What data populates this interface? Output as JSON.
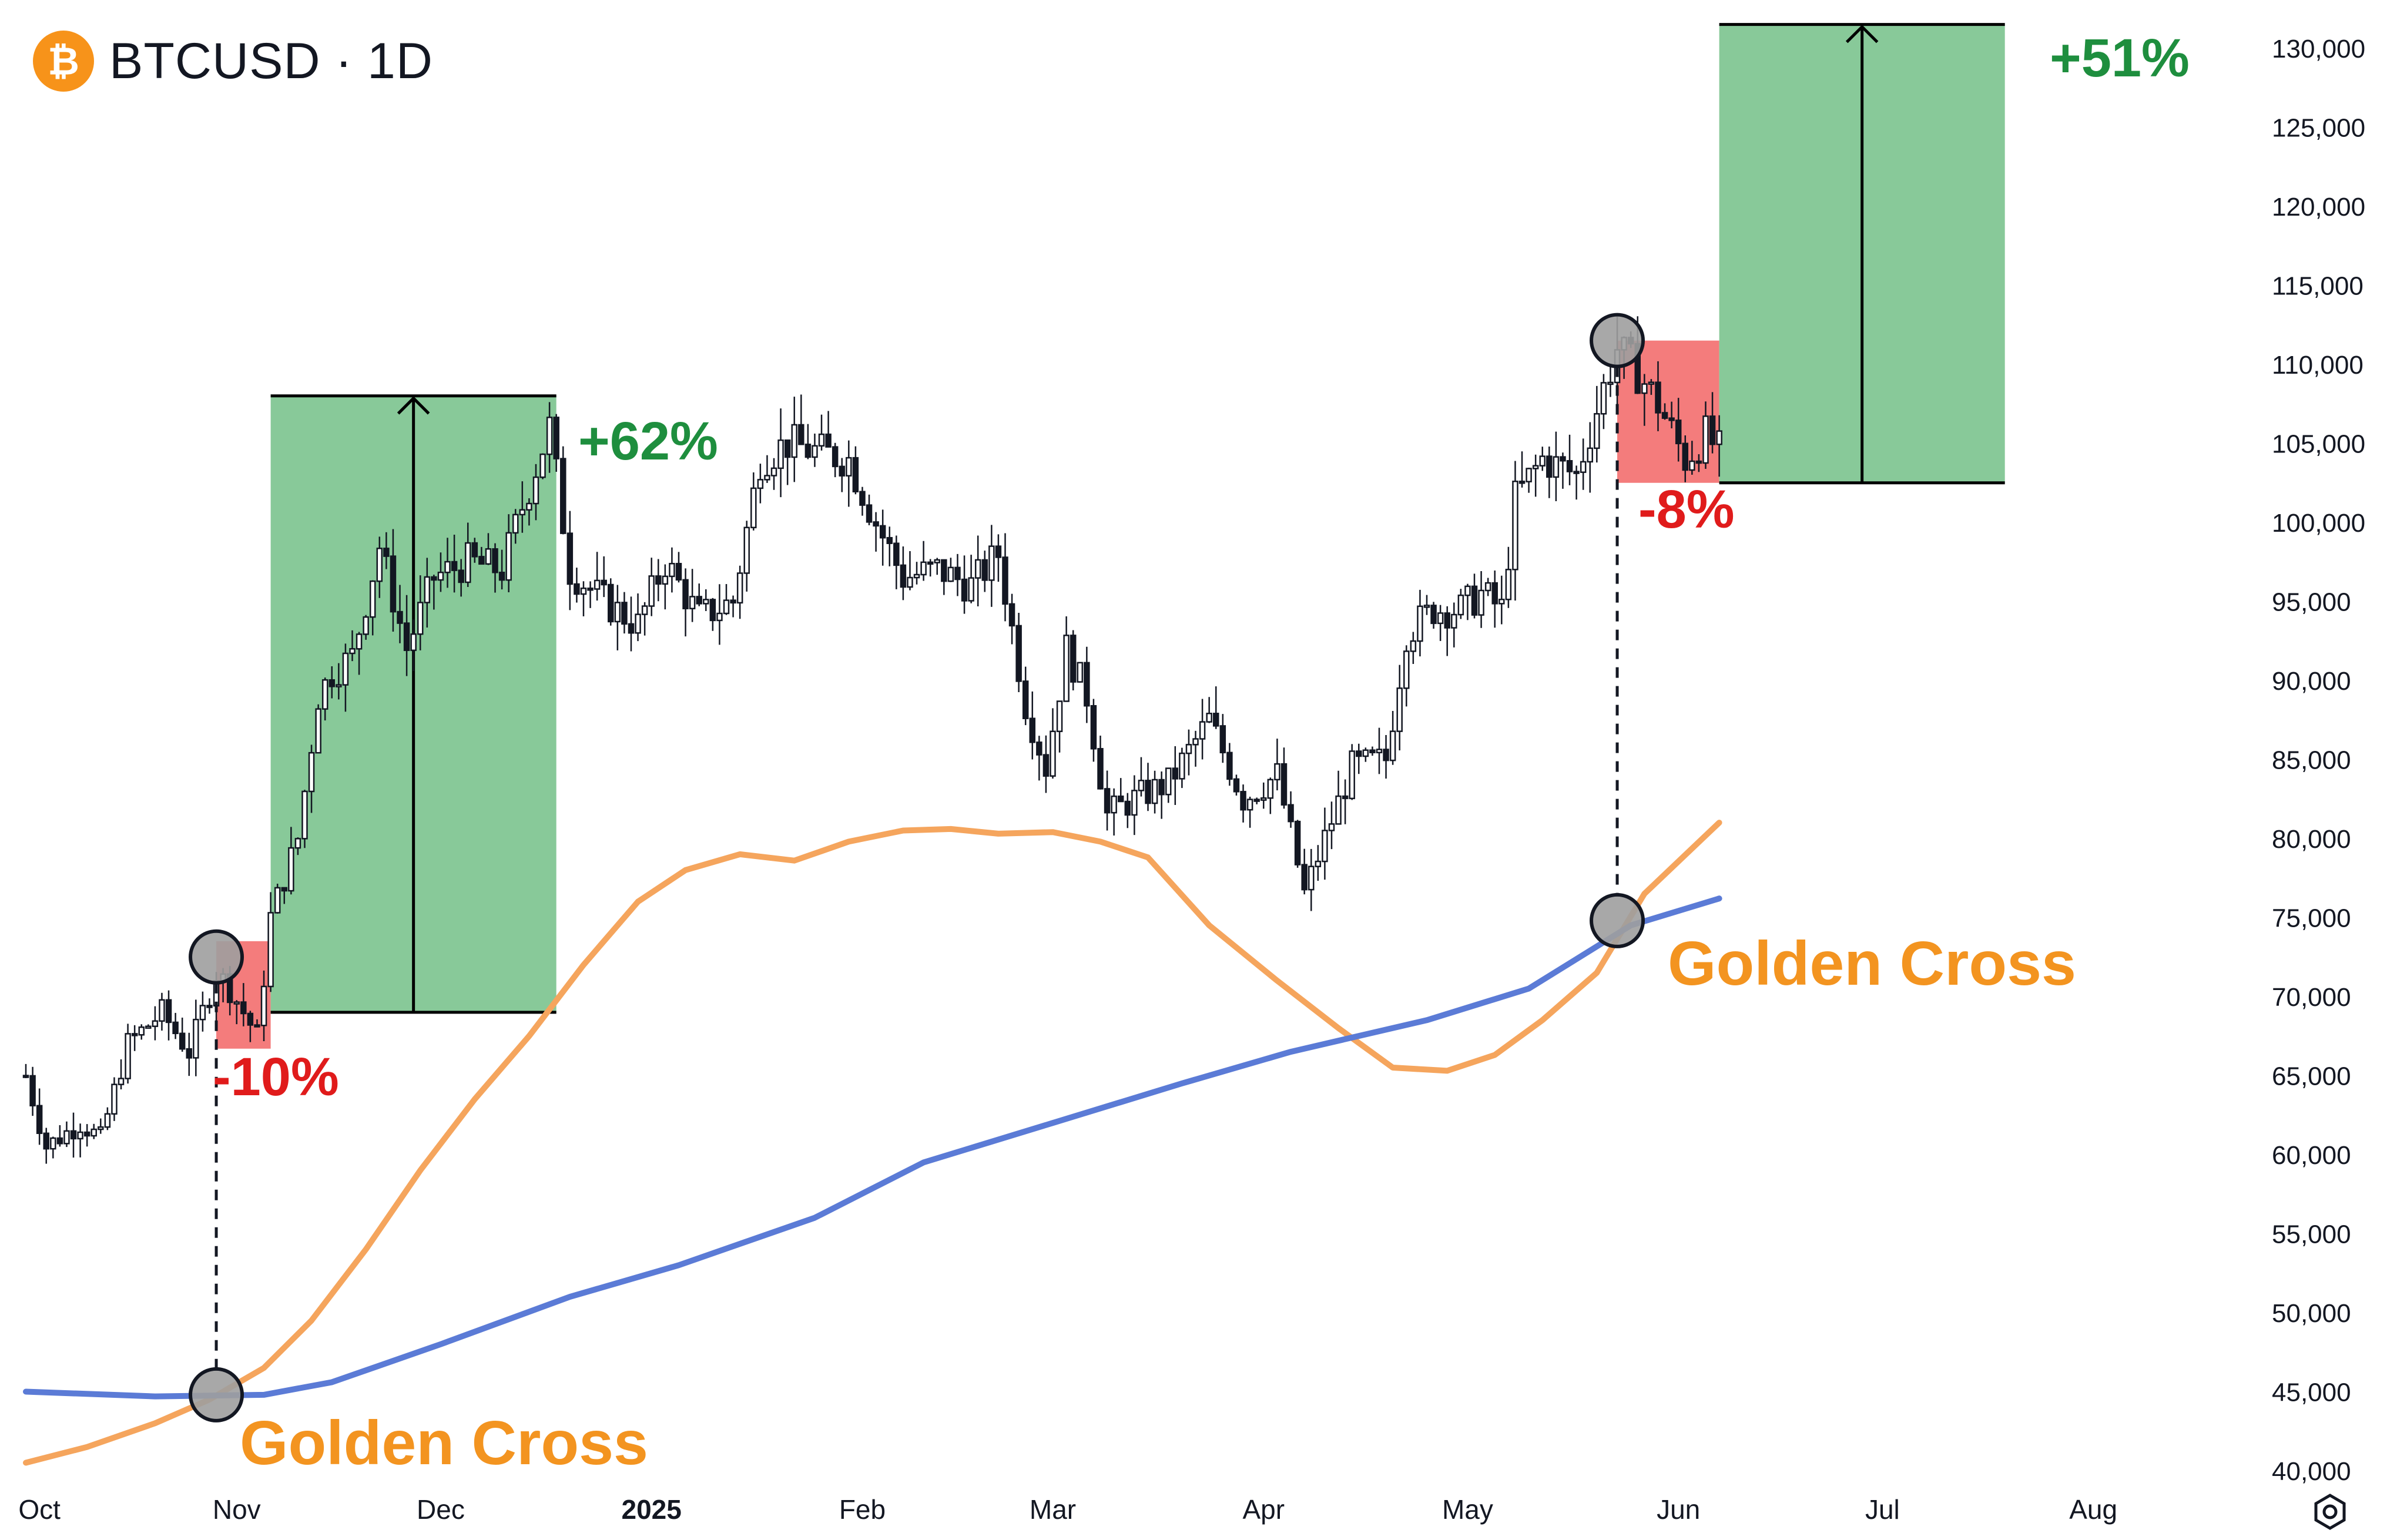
{
  "header": {
    "symbol": "BTCUSD · 1D",
    "logo_glyph": "₿",
    "logo_color": "#F7931A"
  },
  "colors": {
    "sma50": "#F5A55D",
    "sma200": "#5B7BD6",
    "gain": "#88C999",
    "loss": "#F47C7C",
    "gain_text": "#1E8E3E",
    "loss_text": "#E01B1B",
    "cross_text": "#F39420"
  },
  "chart_data": {
    "type": "candlestick",
    "title": "BTCUSD · 1D",
    "ylim": [
      40000,
      132000
    ],
    "y_ticks": [
      "130,000",
      "125,000",
      "120,000",
      "115,000",
      "110,000",
      "105,000",
      "100,000",
      "95,000",
      "90,000",
      "85,000",
      "80,000",
      "75,000",
      "70,000",
      "65,000",
      "60,000",
      "55,000",
      "50,000",
      "45,000",
      "40,000"
    ],
    "x_ticks": [
      "Oct",
      "Nov",
      "Dec",
      "2025",
      "Feb",
      "Mar",
      "Apr",
      "May",
      "Jun",
      "Jul",
      "Aug"
    ],
    "x_range": [
      "2024-10-01",
      "2025-08-06"
    ],
    "price_path": [
      [
        "2024-10-01",
        65000
      ],
      [
        "2024-10-04",
        60500
      ],
      [
        "2024-10-09",
        62000
      ],
      [
        "2024-10-12",
        61000
      ],
      [
        "2024-10-16",
        67000
      ],
      [
        "2024-10-21",
        69000
      ],
      [
        "2024-10-25",
        66500
      ],
      [
        "2024-10-29",
        71500
      ],
      [
        "2024-10-31",
        70500
      ],
      [
        "2024-11-04",
        67500
      ],
      [
        "2024-11-06",
        75000
      ],
      [
        "2024-11-10",
        80000
      ],
      [
        "2024-11-13",
        89000
      ],
      [
        "2024-11-15",
        90500
      ],
      [
        "2024-11-18",
        91500
      ],
      [
        "2024-11-22",
        98500
      ],
      [
        "2024-11-26",
        92000
      ],
      [
        "2024-11-30",
        96500
      ],
      [
        "2024-12-05",
        97500
      ],
      [
        "2024-12-10",
        97000
      ],
      [
        "2024-12-13",
        101000
      ],
      [
        "2024-12-17",
        106000
      ],
      [
        "2024-12-20",
        97000
      ],
      [
        "2024-12-25",
        95000
      ],
      [
        "2024-12-30",
        93500
      ],
      [
        "2025-01-03",
        97500
      ],
      [
        "2025-01-08",
        94000
      ],
      [
        "2025-01-13",
        95000
      ],
      [
        "2025-01-17",
        104000
      ],
      [
        "2025-01-21",
        105000
      ],
      [
        "2025-01-25",
        104500
      ],
      [
        "2025-01-30",
        104000
      ],
      [
        "2025-02-03",
        100000
      ],
      [
        "2025-02-07",
        96500
      ],
      [
        "2025-02-12",
        97000
      ],
      [
        "2025-02-17",
        96000
      ],
      [
        "2025-02-21",
        98000
      ],
      [
        "2025-02-25",
        88500
      ],
      [
        "2025-02-28",
        84500
      ],
      [
        "2025-03-03",
        92000
      ],
      [
        "2025-03-06",
        89000
      ],
      [
        "2025-03-09",
        81500
      ],
      [
        "2025-03-13",
        82500
      ],
      [
        "2025-03-18",
        83500
      ],
      [
        "2025-03-24",
        87500
      ],
      [
        "2025-03-29",
        82500
      ],
      [
        "2025-04-03",
        84000
      ],
      [
        "2025-04-07",
        76500
      ],
      [
        "2025-04-10",
        80000
      ],
      [
        "2025-04-14",
        84500
      ],
      [
        "2025-04-19",
        85000
      ],
      [
        "2025-04-22",
        93000
      ],
      [
        "2025-04-26",
        94500
      ],
      [
        "2025-04-30",
        94500
      ],
      [
        "2025-05-03",
        95500
      ],
      [
        "2025-05-06",
        94500
      ],
      [
        "2025-05-08",
        101500
      ],
      [
        "2025-05-12",
        104000
      ],
      [
        "2025-05-17",
        103000
      ],
      [
        "2025-05-21",
        108500
      ],
      [
        "2025-05-23",
        111000
      ],
      [
        "2025-05-26",
        109500
      ],
      [
        "2025-05-29",
        107500
      ],
      [
        "2025-06-02",
        104000
      ],
      [
        "2025-06-05",
        105500
      ],
      [
        "2025-06-07",
        104500
      ]
    ],
    "series": [
      {
        "name": "",
        "color": "#F5A55D",
        "points": [
          [
            "2024-10-01",
            40500
          ],
          [
            "2024-10-10",
            41500
          ],
          [
            "2024-10-20",
            43000
          ],
          [
            "2024-10-28",
            44500
          ],
          [
            "2024-11-05",
            46500
          ],
          [
            "2024-11-12",
            49500
          ],
          [
            "2024-11-20",
            54000
          ],
          [
            "2024-11-28",
            59000
          ],
          [
            "2024-12-06",
            63500
          ],
          [
            "2024-12-14",
            67500
          ],
          [
            "2024-12-22",
            72000
          ],
          [
            "2024-12-30",
            76000
          ],
          [
            "2025-01-06",
            78000
          ],
          [
            "2025-01-14",
            79000
          ],
          [
            "2025-01-22",
            78600
          ],
          [
            "2025-01-30",
            79800
          ],
          [
            "2025-02-07",
            80500
          ],
          [
            "2025-02-14",
            80600
          ],
          [
            "2025-02-21",
            80300
          ],
          [
            "2025-03-01",
            80400
          ],
          [
            "2025-03-08",
            79800
          ],
          [
            "2025-03-15",
            78800
          ],
          [
            "2025-03-24",
            74500
          ],
          [
            "2025-04-03",
            71000
          ],
          [
            "2025-04-12",
            68000
          ],
          [
            "2025-04-20",
            65500
          ],
          [
            "2025-04-28",
            65300
          ],
          [
            "2025-05-05",
            66300
          ],
          [
            "2025-05-12",
            68500
          ],
          [
            "2025-05-20",
            71500
          ],
          [
            "2025-05-27",
            76500
          ],
          [
            "2025-06-07",
            81000
          ]
        ]
      },
      {
        "name": "",
        "color": "#5B7BD6",
        "points": [
          [
            "2024-10-01",
            45000
          ],
          [
            "2024-10-20",
            44700
          ],
          [
            "2024-11-05",
            44800
          ],
          [
            "2024-11-15",
            45600
          ],
          [
            "2024-12-01",
            48000
          ],
          [
            "2024-12-20",
            51000
          ],
          [
            "2025-01-05",
            53000
          ],
          [
            "2025-01-25",
            56000
          ],
          [
            "2025-02-10",
            59500
          ],
          [
            "2025-03-01",
            62000
          ],
          [
            "2025-03-20",
            64500
          ],
          [
            "2025-04-05",
            66500
          ],
          [
            "2025-04-25",
            68500
          ],
          [
            "2025-05-10",
            70500
          ],
          [
            "2025-05-25",
            74500
          ],
          [
            "2025-06-07",
            76200
          ]
        ]
      }
    ],
    "annotations": [
      {
        "kind": "loss",
        "label": "-10%",
        "x0": "2024-10-29",
        "x1": "2024-11-06",
        "y0": 66700,
        "y1": 73500
      },
      {
        "kind": "gain",
        "label": "+62%",
        "x0": "2024-11-06",
        "x1": "2024-12-18",
        "y0": 69000,
        "y1": 108000
      },
      {
        "kind": "loss",
        "label": "-8%",
        "x0": "2025-05-23",
        "x1": "2025-06-07",
        "y0": 102500,
        "y1": 111500
      },
      {
        "kind": "gain",
        "label": "+51%",
        "x0": "2025-06-07",
        "x1": "2025-07-19",
        "y0": 102500,
        "y1": 131500
      }
    ],
    "crosses": [
      {
        "label": "Golden Cross",
        "date": "2024-10-29",
        "cross_value": 44800,
        "price_value": 72500
      },
      {
        "label": "Golden Cross",
        "date": "2025-05-23",
        "cross_value": 74800,
        "price_value": 111500
      }
    ]
  }
}
